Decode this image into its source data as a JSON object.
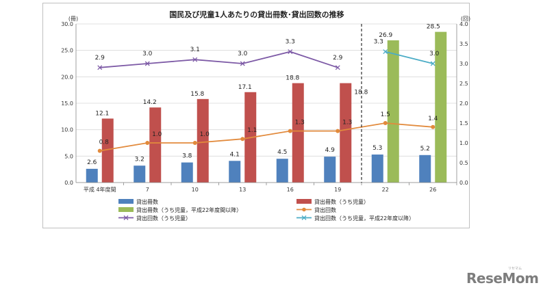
{
  "chart_data": {
    "type": "bar",
    "title": "国民及び児童1人あたりの貸出冊数･貸出回数の推移",
    "categories": [
      "平成 4年度間",
      "7",
      "10",
      "13",
      "16",
      "19",
      "22",
      "26"
    ],
    "y_left": {
      "unit": "(冊)",
      "min": 0,
      "max": 30,
      "step": 5,
      "ticks": [
        "0.0",
        "5.0",
        "10.0",
        "15.0",
        "20.0",
        "25.0",
        "30.0"
      ]
    },
    "y_right": {
      "unit": "(回)",
      "min": 0,
      "max": 4,
      "step": 0.5,
      "ticks": [
        "0.0",
        "0.5",
        "1.0",
        "1.5",
        "2.0",
        "2.5",
        "3.0",
        "3.5",
        "4.0"
      ]
    },
    "divider_after_category": 5,
    "grid": true,
    "legend_placement": "bottom",
    "series": [
      {
        "name": "貸出冊数",
        "kind": "bar",
        "axis": "left",
        "color": "#4f81bd",
        "values": [
          2.6,
          3.2,
          3.8,
          4.1,
          4.5,
          4.9,
          5.3,
          5.2
        ],
        "labels": [
          "2.6",
          "3.2",
          "3.8",
          "4.1",
          "4.5",
          "4.9",
          "5.3",
          "5.2"
        ]
      },
      {
        "name": "貸出冊数（うち児童）",
        "kind": "bar",
        "axis": "left",
        "color": "#c0504d",
        "values": [
          12.1,
          14.2,
          15.8,
          17.1,
          18.8,
          18.8,
          null,
          null
        ],
        "labels": [
          "12.1",
          "14.2",
          "15.8",
          "17.1",
          "18.8",
          "18.8",
          null,
          null
        ]
      },
      {
        "name": "貸出冊数（うち児童，平成22年度間以降）",
        "kind": "bar",
        "axis": "left",
        "color": "#9bbb59",
        "values": [
          null,
          null,
          null,
          null,
          null,
          null,
          26.9,
          28.5
        ],
        "labels": [
          null,
          null,
          null,
          null,
          null,
          null,
          "26.9",
          "28.5"
        ]
      },
      {
        "name": "貸出回数",
        "kind": "line",
        "axis": "right",
        "color": "#e28a3c",
        "marker": "circle",
        "values": [
          0.8,
          1.0,
          1.0,
          1.1,
          1.3,
          1.3,
          1.5,
          1.4
        ],
        "labels": [
          "0.8",
          "1.0",
          "1.0",
          "1.1",
          "1.3",
          "1.3",
          "1.5",
          "1.4"
        ]
      },
      {
        "name": "貸出回数（うち児童）",
        "kind": "line",
        "axis": "right",
        "color": "#7d5aa6",
        "marker": "x",
        "values": [
          2.9,
          3.0,
          3.1,
          3.0,
          3.3,
          2.9,
          null,
          null
        ],
        "labels": [
          "2.9",
          "3.0",
          "3.1",
          "3.0",
          "3.3",
          "2.9",
          null,
          null
        ]
      },
      {
        "name": "貸出回数（うち児童，平成22年度以降）",
        "kind": "line",
        "axis": "right",
        "color": "#4bacc6",
        "marker": "x",
        "values": [
          null,
          null,
          null,
          null,
          null,
          null,
          3.3,
          3.0
        ],
        "labels": [
          null,
          null,
          null,
          null,
          null,
          null,
          "3.3",
          "3.0"
        ]
      }
    ]
  },
  "watermark": {
    "text": "ReseMom",
    "subtext": "リセマム"
  }
}
